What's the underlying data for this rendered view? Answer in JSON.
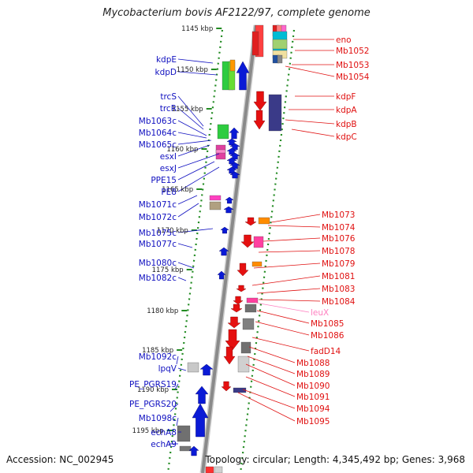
{
  "title": "Mycobacterium bovis AF2122/97, complete genome",
  "accession": "Accession: NC_002945",
  "summary": "Topology: circular; Length: 4,345,492 bp; Genes: 3,968",
  "colors": {
    "left_label": "#1010c0",
    "right_label": "#e01010",
    "rna_label": "#ff80c0",
    "tick": "#228b22",
    "backbone": "#8a8a8a"
  },
  "kbp_ticks": [
    "1145 kbp",
    "1150 kbp",
    "1155 kbp",
    "1160 kbp",
    "1165 kbp",
    "1170 kbp",
    "1175 kbp",
    "1180 kbp",
    "1185 kbp",
    "1190 kbp",
    "1195 kbp"
  ],
  "left_genes": [
    "kdpE",
    "kdpD",
    "trcS",
    "trcR",
    "Mb1063c",
    "Mb1064c",
    "Mb1065c",
    "esxI",
    "esxJ",
    "PPE15",
    "PE8",
    "Mb1071c",
    "Mb1072c",
    "Mb1075c",
    "Mb1077c",
    "Mb1080c",
    "Mb1082c",
    "Mb1092c",
    "lpqV",
    "PE_PGRS19",
    "PE_PGRS20",
    "Mb1098c",
    "echA8",
    "echA9"
  ],
  "right_genes": [
    "eno",
    "Mb1052",
    "Mb1053",
    "Mb1054",
    "kdpF",
    "kdpA",
    "kdpB",
    "kdpC",
    "Mb1073",
    "Mb1074",
    "Mb1076",
    "Mb1078",
    "Mb1079",
    "Mb1081",
    "Mb1083",
    "Mb1084",
    "leuX",
    "Mb1085",
    "Mb1086",
    "fadD14",
    "Mb1088",
    "Mb1089",
    "Mb1090",
    "Mb1091",
    "Mb1094",
    "Mb1095"
  ]
}
